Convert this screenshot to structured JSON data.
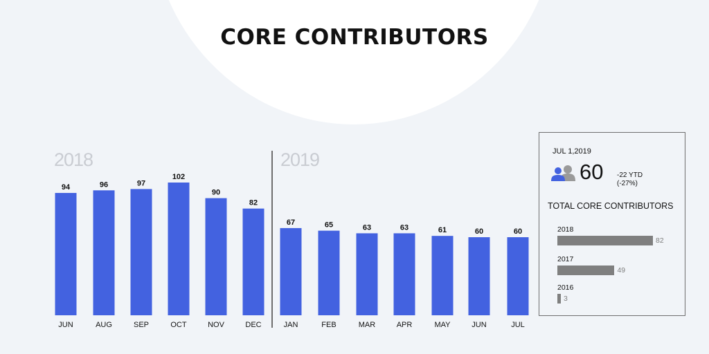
{
  "title": "CORE CONTRIBUTORS",
  "colors": {
    "bar": "#4362e0",
    "summary_bar": "#7f7f7f",
    "background": "#f1f4f8"
  },
  "chart_data": {
    "type": "bar",
    "groups": [
      {
        "year_label": "2018",
        "categories": [
          "JUN",
          "AUG",
          "SEP",
          "OCT",
          "NOV",
          "DEC"
        ]
      },
      {
        "year_label": "2019",
        "categories": [
          "JAN",
          "FEB",
          "MAR",
          "APR",
          "MAY",
          "JUN",
          "JUL"
        ]
      }
    ],
    "categories": [
      "JUN",
      "AUG",
      "SEP",
      "OCT",
      "NOV",
      "DEC",
      "JAN",
      "FEB",
      "MAR",
      "APR",
      "MAY",
      "JUN",
      "JUL"
    ],
    "values": [
      94,
      96,
      97,
      102,
      90,
      82,
      67,
      65,
      63,
      63,
      61,
      60,
      60
    ],
    "ylim": [
      0,
      102
    ],
    "grid": false,
    "data_labels": true
  },
  "summary": {
    "date": "JUL 1,2019",
    "icon": "people-icon",
    "value": "60",
    "change_ytd": "-22 YTD",
    "change_pct": "(-27%)",
    "subtitle": "TOTAL CORE CONTRIBUTORS",
    "summary_chart": {
      "type": "bar",
      "orientation": "horizontal",
      "categories": [
        "2018",
        "2017",
        "2016"
      ],
      "values": [
        82,
        49,
        3
      ]
    }
  }
}
